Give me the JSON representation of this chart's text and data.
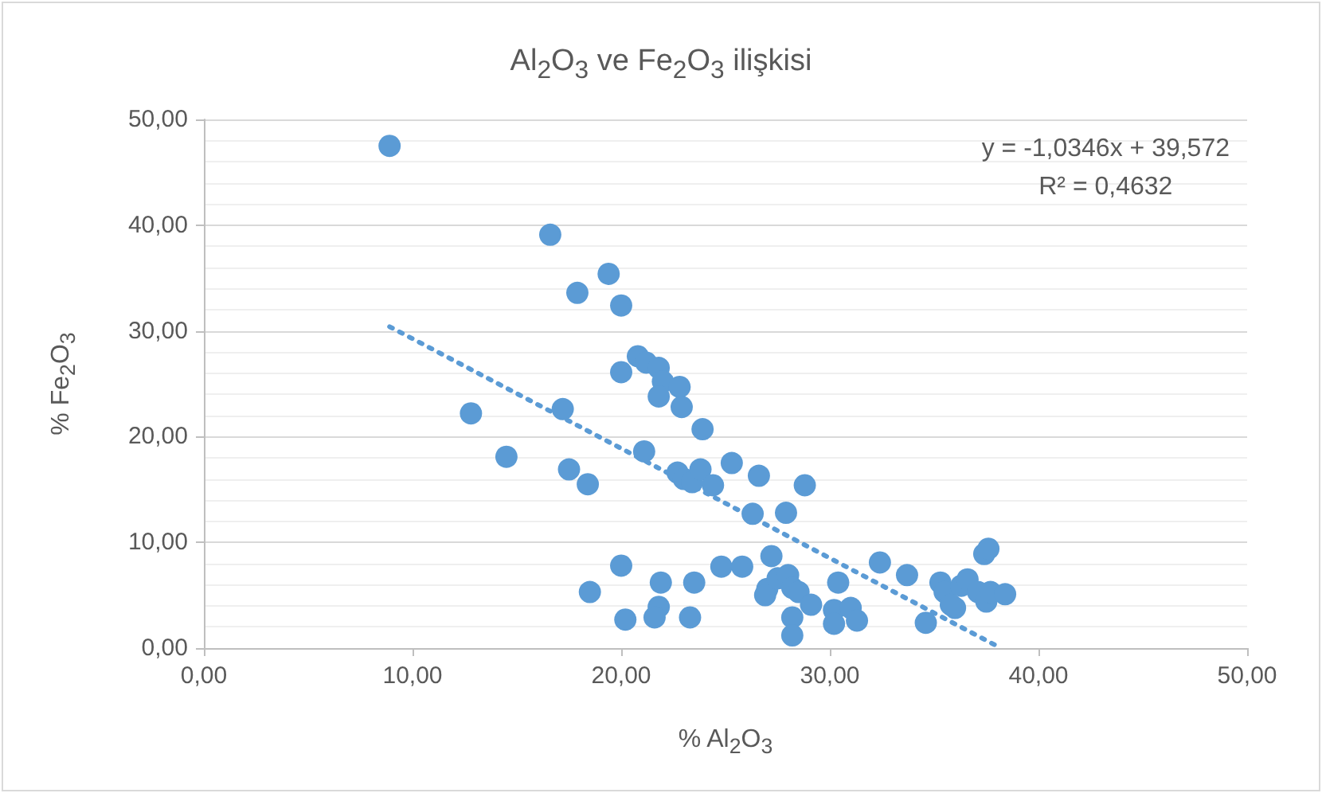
{
  "chart_data": {
    "type": "scatter",
    "title": "Al$_{2}$O$_{3}$ ve Fe$_{2}$O$_{3}$ ilişkisi",
    "xlabel": "% Al$_{2}$O$_{3}$",
    "ylabel": "% Fe$_{2}$O$_{3}$",
    "annotations": [
      "y = -1,0346x + 39,572",
      "R² = 0,4632"
    ],
    "xlim": [
      0,
      50
    ],
    "ylim": [
      0,
      50
    ],
    "xticks": [
      {
        "value": 0,
        "label": "0,00"
      },
      {
        "value": 10,
        "label": "10,00"
      },
      {
        "value": 20,
        "label": "20,00"
      },
      {
        "value": 30,
        "label": "30,00"
      },
      {
        "value": 40,
        "label": "40,00"
      },
      {
        "value": 50,
        "label": "50,00"
      }
    ],
    "yticks": [
      {
        "value": 0,
        "label": "0,00"
      },
      {
        "value": 10,
        "label": "10,00"
      },
      {
        "value": 20,
        "label": "20,00"
      },
      {
        "value": 30,
        "label": "30,00"
      },
      {
        "value": 40,
        "label": "40,00"
      },
      {
        "value": 50,
        "label": "50,00"
      }
    ],
    "grid": "y",
    "marker": "circle",
    "series": [
      {
        "color": "#5b9bd5",
        "x": [
          8.9,
          16.6,
          17.9,
          19.4,
          20.0,
          20.0,
          20.8,
          21.2,
          21.8,
          22.0,
          21.8,
          22.8,
          22.9,
          23.9,
          12.8,
          17.2,
          14.5,
          17.5,
          18.4,
          21.1,
          22.7,
          23.0,
          23.4,
          23.8,
          24.4,
          25.3,
          26.6,
          26.3,
          27.9,
          28.8,
          20.0,
          18.5,
          21.9,
          21.8,
          20.2,
          21.6,
          23.5,
          23.3,
          24.8,
          25.8,
          27.2,
          27.0,
          26.9,
          27.5,
          28.0,
          28.2,
          28.5,
          29.1,
          28.2,
          28.2,
          30.4,
          30.2,
          31.0,
          30.2,
          31.3,
          32.4,
          33.7,
          34.6,
          35.3,
          35.5,
          36.0,
          36.3,
          36.6,
          37.1,
          37.4,
          37.6,
          37.5,
          37.7,
          38.4,
          35.8
        ],
        "values": [
          47.5,
          39.1,
          33.6,
          35.4,
          32.4,
          26.1,
          27.6,
          27.0,
          26.5,
          25.2,
          23.8,
          24.7,
          22.8,
          20.7,
          22.2,
          22.6,
          18.1,
          16.9,
          15.5,
          18.6,
          16.6,
          16.0,
          15.7,
          16.9,
          15.4,
          17.5,
          16.3,
          12.7,
          12.8,
          15.4,
          7.8,
          5.3,
          6.2,
          3.9,
          2.7,
          2.9,
          6.2,
          2.9,
          7.7,
          7.7,
          8.7,
          5.6,
          5.0,
          6.6,
          6.9,
          5.7,
          5.3,
          4.1,
          2.9,
          1.2,
          6.2,
          3.6,
          3.8,
          2.3,
          2.6,
          8.1,
          6.9,
          2.4,
          6.2,
          5.3,
          3.8,
          5.9,
          6.5,
          5.3,
          8.9,
          9.4,
          4.4,
          5.3,
          5.1,
          4.1
        ]
      },
      {
        "type": "line",
        "color": "#5b9bd5",
        "line_style": "dotted",
        "marker": "none",
        "x": [
          8.9,
          38.2
        ],
        "values": [
          30.4,
          0
        ]
      }
    ]
  }
}
